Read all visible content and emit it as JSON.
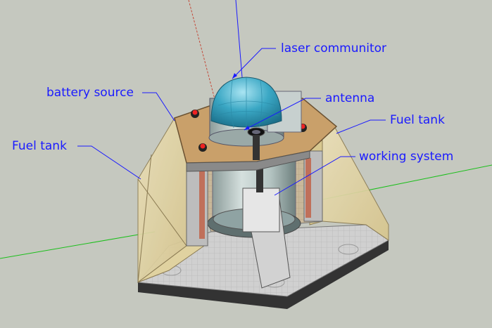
{
  "diagram": {
    "labels": {
      "laser_communitor": "laser communitor",
      "battery_source": "battery source",
      "antenna": "antenna",
      "fuel_tank_right": "Fuel tank",
      "fuel_tank_left": "Fuel tank",
      "working_system": "working system"
    },
    "colors": {
      "background": "#c5c8bf",
      "label_text": "#1a1aff",
      "leader_line": "#1a1aff",
      "dome": "#3aa7c4",
      "fuel_tank_panel": "#e4d6a6",
      "base_floor": "#c9c9c9",
      "base_side": "#333333",
      "green_axis": "#1bbf1b",
      "red_axis": "#c44a3a"
    }
  }
}
